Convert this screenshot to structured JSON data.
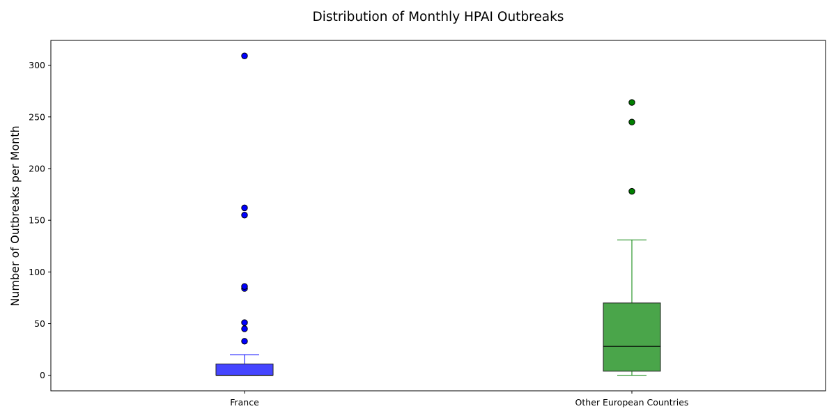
{
  "chart_data": {
    "type": "box",
    "title": "Distribution of Monthly HPAI Outbreaks",
    "xlabel": "",
    "ylabel": "Number of Outbreaks per Month",
    "ylim": [
      -15,
      324
    ],
    "yticks": [
      0,
      50,
      100,
      150,
      200,
      250,
      300
    ],
    "grid": false,
    "categories": [
      "France",
      "Other European Countries"
    ],
    "boxes": [
      {
        "category": "France",
        "whisker_low": 0,
        "q1": 0,
        "median": 0,
        "q3": 11,
        "whisker_high": 20,
        "outliers": [
          33,
          45,
          51,
          84,
          86,
          155,
          162,
          309
        ],
        "fill_color": "#4545ff",
        "line_color": "#0000ff",
        "outlier_color": "#0000ff"
      },
      {
        "category": "Other European Countries",
        "whisker_low": 0,
        "q1": 4,
        "median": 28,
        "q3": 70,
        "whisker_high": 131,
        "outliers": [
          178,
          245,
          264
        ],
        "fill_color": "#4aa54a",
        "line_color": "#008000",
        "outlier_color": "#008000"
      }
    ]
  }
}
